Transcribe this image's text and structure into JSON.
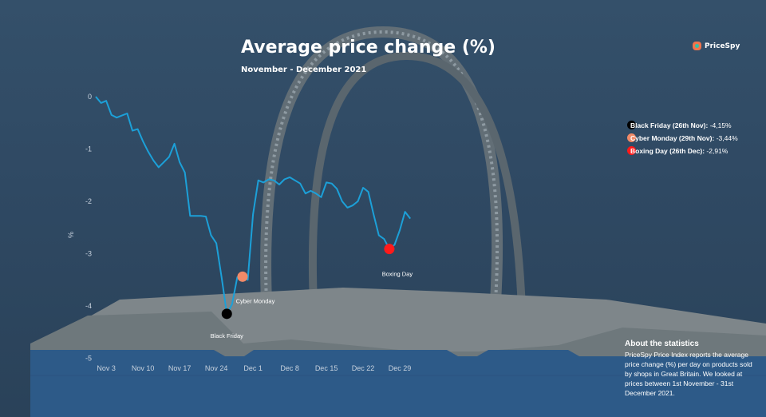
{
  "header": {
    "title": "Average price change (%)",
    "subtitle": "November - December 2021"
  },
  "brand": {
    "name": "PriceSpy",
    "icon": "pricespy-logo-icon"
  },
  "colors": {
    "line": "#1ca0d8",
    "black_friday": "#000000",
    "cyber_monday": "#f08a68",
    "boxing_day": "#ff1a1a",
    "axis_text": "#c8d2de"
  },
  "chart_data": {
    "type": "line",
    "ylabel": "%",
    "ylim": [
      -5,
      0
    ],
    "yticks": [
      0,
      -1,
      -2,
      -3,
      -4,
      -5
    ],
    "ytick_labels": [
      "0",
      "-1",
      "-2",
      "-3",
      "-4",
      "-5"
    ],
    "xticks": [
      "Nov 3",
      "Nov 10",
      "Nov 17",
      "Nov 24",
      "Dec 1",
      "Dec 8",
      "Dec 15",
      "Dec 22",
      "Dec 29"
    ],
    "xtick_days": [
      3,
      10,
      17,
      24,
      31,
      38,
      45,
      52,
      59
    ],
    "grid": false,
    "series": [
      {
        "x": [
          1,
          2,
          3,
          4,
          5,
          6,
          7,
          8,
          9,
          10,
          11,
          12,
          13,
          14,
          15,
          16,
          17,
          18,
          19,
          20,
          21,
          22,
          23,
          24,
          25,
          26,
          27,
          28,
          29,
          30,
          31,
          32,
          33,
          34,
          35,
          36,
          37,
          38,
          39,
          40,
          41,
          42,
          43,
          44,
          45,
          46,
          47,
          48,
          49,
          50,
          51,
          52,
          53,
          54,
          55,
          56,
          57,
          58,
          59,
          60,
          61
        ],
        "y": [
          0.0,
          -0.12,
          -0.08,
          -0.35,
          -0.4,
          -0.36,
          -0.32,
          -0.65,
          -0.62,
          -0.85,
          -1.05,
          -1.22,
          -1.35,
          -1.25,
          -1.15,
          -0.9,
          -1.25,
          -1.45,
          -2.28,
          -2.28,
          -2.28,
          -2.29,
          -2.65,
          -2.8,
          -3.45,
          -4.15,
          -3.97,
          -3.45,
          -3.44,
          -3.5,
          -2.25,
          -1.6,
          -1.64,
          -1.58,
          -1.6,
          -1.68,
          -1.58,
          -1.54,
          -1.6,
          -1.66,
          -1.85,
          -1.8,
          -1.85,
          -1.92,
          -1.64,
          -1.66,
          -1.76,
          -2.0,
          -2.12,
          -2.08,
          -2.0,
          -1.74,
          -1.82,
          -2.25,
          -2.65,
          -2.72,
          -2.91,
          -2.83,
          -2.55,
          -2.2,
          -2.33
        ]
      }
    ],
    "markers": [
      {
        "label": "Black Friday",
        "x": 26,
        "y": -4.15,
        "color": "#000000"
      },
      {
        "label": "Cyber Monday",
        "x": 29,
        "y": -3.44,
        "color": "#f08a68"
      },
      {
        "label": "Boxing Day",
        "x": 57,
        "y": -2.91,
        "color": "#ff1a1a"
      }
    ]
  },
  "legend": [
    {
      "icon": "black-dot-icon",
      "label": "Black Friday (26th Nov):",
      "value": "-4,15%"
    },
    {
      "icon": "coral-dot-icon",
      "label": "Cyber Monday (29th Nov):",
      "value": "-3,44%"
    },
    {
      "icon": "red-dot-icon",
      "label": "Boxing Day (26th Dec):",
      "value": "-2,91%"
    }
  ],
  "about": {
    "title": "About the statistics",
    "body": "PriceSpy Price Index reports the average price change (%) per day on products sold by shops in Great Britain. We looked at prices between 1st November - 31st December 2021."
  }
}
